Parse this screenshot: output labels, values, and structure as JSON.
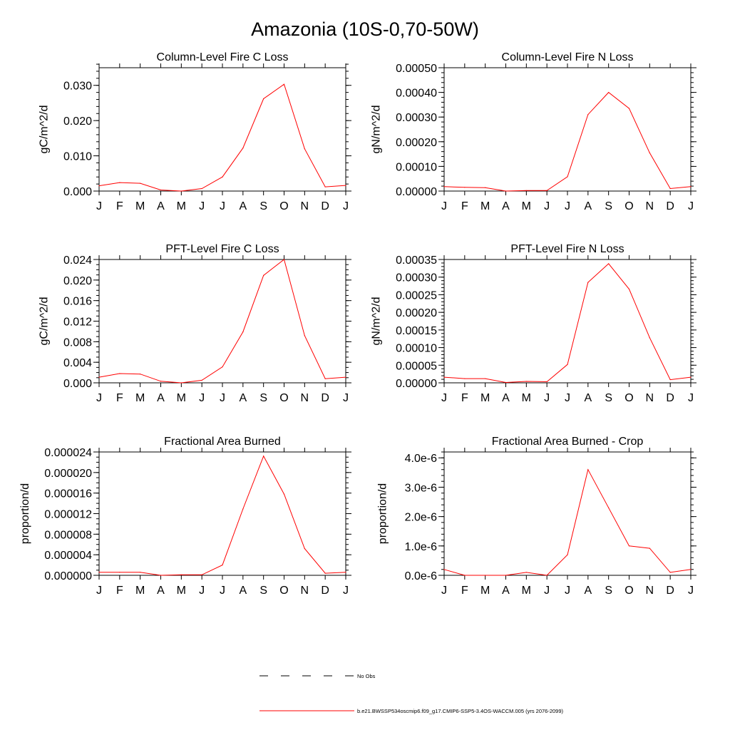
{
  "figure": {
    "title": "Amazonia (10S-0,70-50W)"
  },
  "chart_data": [
    {
      "type": "line",
      "title": "Column-Level Fire C Loss",
      "xlabel": "",
      "ylabel": "gC/m^2/d",
      "categories": [
        "J",
        "F",
        "M",
        "A",
        "M",
        "J",
        "J",
        "A",
        "S",
        "O",
        "N",
        "D",
        "J"
      ],
      "ylim": [
        0,
        0.035
      ],
      "yticks": [
        "0.000",
        "0.010",
        "0.020",
        "0.030"
      ],
      "ytick_values": [
        0,
        0.01,
        0.02,
        0.03
      ],
      "yminor_step": 0.002,
      "series": [
        {
          "values": [
            0.0015,
            0.0024,
            0.0022,
            0.0003,
            0.0,
            0.0007,
            0.004,
            0.0122,
            0.0262,
            0.0303,
            0.012,
            0.0012,
            0.0016
          ]
        }
      ]
    },
    {
      "type": "line",
      "title": "Column-Level Fire N Loss",
      "xlabel": "",
      "ylabel": "gN/m^2/d",
      "categories": [
        "J",
        "F",
        "M",
        "A",
        "M",
        "J",
        "J",
        "A",
        "S",
        "O",
        "N",
        "D",
        "J"
      ],
      "ylim": [
        0,
        0.0005
      ],
      "yticks": [
        "0.00000",
        "0.00010",
        "0.00020",
        "0.00030",
        "0.00040",
        "0.00050"
      ],
      "ytick_values": [
        0,
        0.0001,
        0.0002,
        0.0003,
        0.0004,
        0.0005
      ],
      "yminor_step": 2e-05,
      "series": [
        {
          "values": [
            1.8e-05,
            1.5e-05,
            1.4e-05,
            0.0,
            2e-06,
            2e-06,
            5.8e-05,
            0.00031,
            0.0004,
            0.000335,
            0.000155,
            1e-05,
            1.8e-05
          ]
        }
      ]
    },
    {
      "type": "line",
      "title": "PFT-Level Fire C Loss",
      "xlabel": "",
      "ylabel": "gC/m^2/d",
      "categories": [
        "J",
        "F",
        "M",
        "A",
        "M",
        "J",
        "J",
        "A",
        "S",
        "O",
        "N",
        "D",
        "J"
      ],
      "ylim": [
        0,
        0.024
      ],
      "yticks": [
        "0.000",
        "0.004",
        "0.008",
        "0.012",
        "0.016",
        "0.020",
        "0.024"
      ],
      "ytick_values": [
        0,
        0.004,
        0.008,
        0.012,
        0.016,
        0.02,
        0.024
      ],
      "yminor_step": 0.001,
      "series": [
        {
          "values": [
            0.0011,
            0.0018,
            0.0017,
            0.0003,
            0.0,
            0.0005,
            0.0031,
            0.0099,
            0.0209,
            0.024,
            0.0092,
            0.0008,
            0.0011
          ]
        }
      ]
    },
    {
      "type": "line",
      "title": "PFT-Level Fire N Loss",
      "xlabel": "",
      "ylabel": "gN/m^2/d",
      "categories": [
        "J",
        "F",
        "M",
        "A",
        "M",
        "J",
        "J",
        "A",
        "S",
        "O",
        "N",
        "D",
        "J"
      ],
      "ylim": [
        0,
        0.00035
      ],
      "yticks": [
        "0.00000",
        "0.00005",
        "0.00010",
        "0.00015",
        "0.00020",
        "0.00025",
        "0.00030",
        "0.00035"
      ],
      "ytick_values": [
        0,
        5e-05,
        0.0001,
        0.00015,
        0.0002,
        0.00025,
        0.0003,
        0.00035
      ],
      "yminor_step": 1e-05,
      "series": [
        {
          "values": [
            1.6e-05,
            1.2e-05,
            1.2e-05,
            1e-06,
            4e-06,
            3e-06,
            5.2e-05,
            0.000285,
            0.000338,
            0.000266,
            0.000128,
            9e-06,
            1.6e-05
          ]
        }
      ]
    },
    {
      "type": "line",
      "title": "Fractional Area Burned",
      "xlabel": "",
      "ylabel": "proportion/d",
      "categories": [
        "J",
        "F",
        "M",
        "A",
        "M",
        "J",
        "J",
        "A",
        "S",
        "O",
        "N",
        "D",
        "J"
      ],
      "ylim": [
        0,
        2.4e-05
      ],
      "yticks": [
        "0.000000",
        "0.000004",
        "0.000008",
        "0.000012",
        "0.000016",
        "0.000020",
        "0.000024"
      ],
      "ytick_values": [
        0,
        4e-06,
        8e-06,
        1.2e-05,
        1.6e-05,
        2e-05,
        2.4e-05
      ],
      "yminor_step": 1e-06,
      "series": [
        {
          "values": [
            6e-07,
            6e-07,
            6e-07,
            0.0,
            1e-07,
            1e-07,
            2e-06,
            1.29e-05,
            2.32e-05,
            1.58e-05,
            5.2e-06,
            4e-07,
            6e-07
          ]
        }
      ]
    },
    {
      "type": "line",
      "title": "Fractional Area Burned - Crop",
      "xlabel": "",
      "ylabel": "proportion/d",
      "categories": [
        "J",
        "F",
        "M",
        "A",
        "M",
        "J",
        "J",
        "A",
        "S",
        "O",
        "N",
        "D",
        "J"
      ],
      "ylim": [
        0,
        4.2e-06
      ],
      "yticks": [
        "0.0e-6",
        "1.0e-6",
        "2.0e-6",
        "3.0e-6",
        "4.0e-6"
      ],
      "ytick_values": [
        0,
        1e-06,
        2e-06,
        3e-06,
        4e-06
      ],
      "yminor_step": 2e-07,
      "series": [
        {
          "values": [
            2e-07,
            0.0,
            0.0,
            0.0,
            1e-07,
            0.0,
            7e-07,
            3.6e-06,
            2.3e-06,
            1e-06,
            9.2e-07,
            1e-07,
            2e-07
          ]
        }
      ]
    }
  ],
  "legend": [
    {
      "label": "No Obs",
      "style": "dashed",
      "color": "#000000"
    },
    {
      "label": "b.e21.BWSSP534oscmip6.f09_g17.CMIP6-SSP5-3.4OS-WACCM.005 (yrs 2076-2099)",
      "style": "solid",
      "color": "#ff0000"
    }
  ],
  "colors": {
    "series": "#ff0000",
    "axes": "#000000"
  }
}
